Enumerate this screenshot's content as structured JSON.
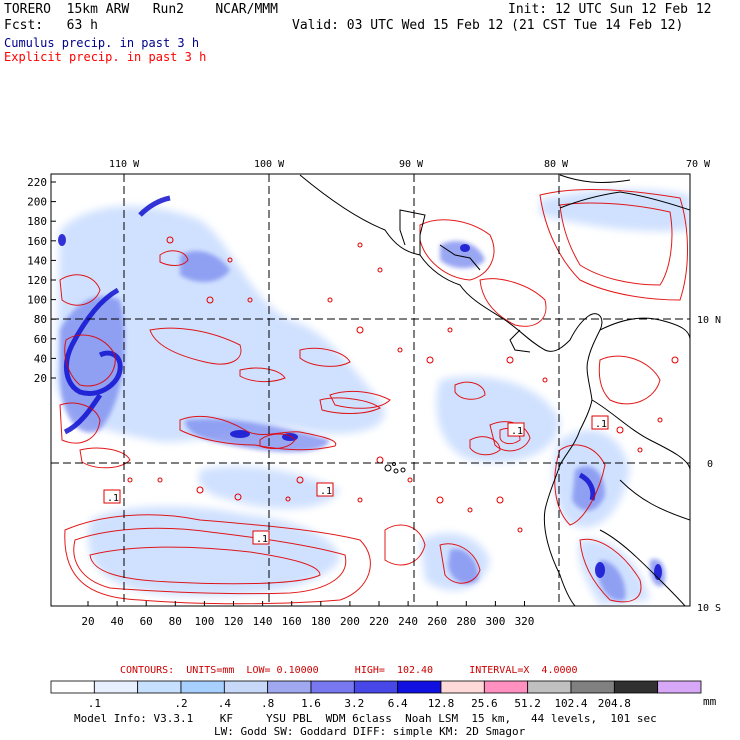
{
  "header": {
    "model": "TORERO  15km ARW   Run2    NCAR/MMM",
    "init": "Init: 12 UTC Sun 12 Feb 12",
    "fcst": "Fcst:   63 h",
    "valid": "Valid: 03 UTC Wed 15 Feb 12 (21 CST Tue 14 Feb 12)"
  },
  "legend": {
    "cumulus": "Cumulus precip. in past 3 h",
    "explicit": "Explicit precip. in past 3 h",
    "cumulus_color": "#00008b",
    "explicit_color": "#ff0000"
  },
  "map": {
    "lon_labels": [
      "110 W",
      "100 W",
      "90 W",
      "80 W",
      "70 W"
    ],
    "lat_labels": [
      "10 N",
      "0",
      "10 S"
    ],
    "y_ticks": [
      "220",
      "200",
      "180",
      "160",
      "140",
      "120",
      "100",
      "80",
      "60",
      "40",
      "20"
    ],
    "x_ticks": [
      "20",
      "40",
      "60",
      "80",
      "100",
      "120",
      "140",
      "160",
      "180",
      "200",
      "220",
      "240",
      "260",
      "280",
      "300",
      "320"
    ],
    "box_labels": [
      ".1",
      ".1",
      ".1",
      ".1",
      ".1"
    ]
  },
  "contours_line": {
    "label": "CONTOURS:  UNITS=mm  LOW= 0.10000      HIGH=  102.40      INTERVAL=X  4.0000"
  },
  "colorbar": {
    "colors": [
      "#ffffff",
      "#e8f0ff",
      "#c8e0ff",
      "#a8d0ff",
      "#c8d8f8",
      "#a0a8f0",
      "#7878f0",
      "#4848e8",
      "#1010e0",
      "#ffd8d8",
      "#ff90c0",
      "#c0c0c0",
      "#808080",
      "#303030",
      "#d8a8f8"
    ],
    "labels": [
      ".1",
      ".2",
      ".4",
      ".8",
      "1.6",
      "3.2",
      "6.4",
      "12.8",
      "25.6",
      "51.2",
      "102.4",
      "204.8"
    ],
    "unit": "mm"
  },
  "footer": {
    "line1": "Model Info: V3.3.1    KF     YSU PBL  WDM 6class  Noah LSM  15 km,   44 levels,  101 sec",
    "line2": "LW: Godd SW: Goddard DIFF: simple KM: 2D Smagor"
  }
}
